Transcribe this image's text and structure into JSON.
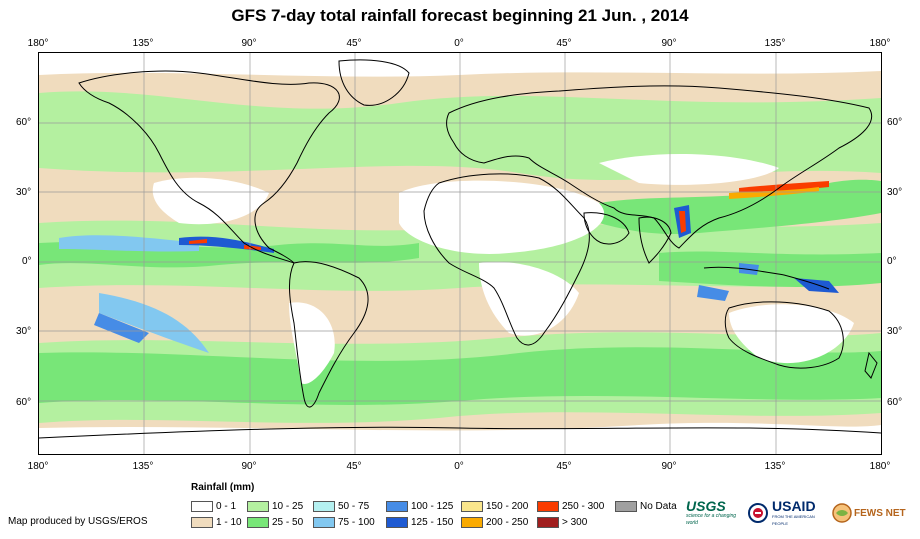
{
  "title": "GFS 7-day total rainfall forecast beginning 21 Jun. , 2014",
  "longitude_labels": [
    "180°",
    "135°",
    "90°",
    "45°",
    "0°",
    "45°",
    "90°",
    "135°",
    "180°"
  ],
  "latitude_labels": [
    "60°",
    "30°",
    "0°",
    "30°",
    "60°"
  ],
  "legend": {
    "title": "Rainfall (mm)",
    "items": [
      {
        "label": "0 - 1",
        "color": "#ffffff"
      },
      {
        "label": "1 - 10",
        "color": "#f0dcbe"
      },
      {
        "label": "10 - 25",
        "color": "#b4f0a0"
      },
      {
        "label": "25 - 50",
        "color": "#78e678"
      },
      {
        "label": "50 - 75",
        "color": "#b4f0f0"
      },
      {
        "label": "75 - 100",
        "color": "#82c8f0"
      },
      {
        "label": "100 - 125",
        "color": "#468ce6"
      },
      {
        "label": "125 - 150",
        "color": "#1e5ad2"
      },
      {
        "label": "150 - 200",
        "color": "#fae68c"
      },
      {
        "label": "200 - 250",
        "color": "#faaa00"
      },
      {
        "label": "250 - 300",
        "color": "#fa3c00"
      },
      {
        "label": "> 300",
        "color": "#a01e1e"
      },
      {
        "label": "No Data",
        "color": "#a0a0a0"
      }
    ]
  },
  "credit": "Map produced by USGS/EROS",
  "logos": {
    "usgs": "USGS",
    "usgs_tagline": "science for a changing world",
    "usaid": "USAID",
    "usaid_tagline": "FROM THE AMERICAN PEOPLE",
    "fewsnet": "FEWS NET"
  }
}
